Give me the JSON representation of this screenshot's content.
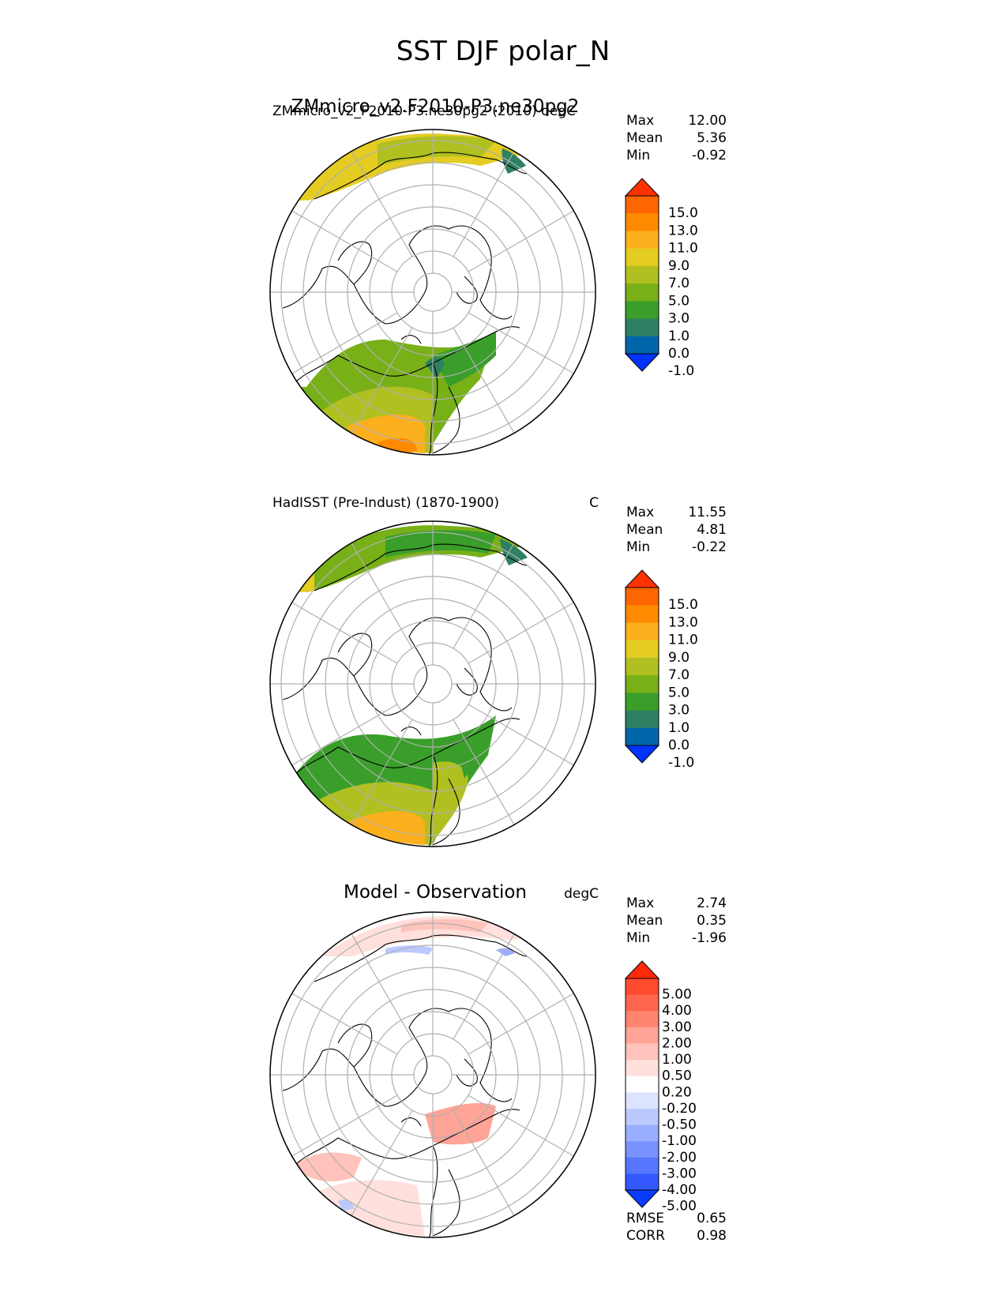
{
  "figure": {
    "title": "SST DJF polar_N"
  },
  "colors": {
    "abs_levels": [
      "#0033ff",
      "#0066aa",
      "#2e8063",
      "#3a9e2a",
      "#78b018",
      "#b0c020",
      "#e4cc22",
      "#fcb01e",
      "#ff8a00",
      "#ff6600",
      "#ff3300"
    ],
    "diff_levels": [
      "#0a3cff",
      "#3458ff",
      "#5676ff",
      "#7892ff",
      "#9aaeff",
      "#bcc9ff",
      "#dde4ff",
      "#ffffff",
      "#ffe0dc",
      "#ffc3bb",
      "#ffa496",
      "#ff8570",
      "#ff664e",
      "#ff4a2e",
      "#ff2a0a"
    ],
    "grid": "#b0b0b0",
    "coast": "#000000"
  },
  "panels": [
    {
      "id": "test",
      "left_title": "ZMmicro_v2_F2010-P3.ne30pg2 (2010) degC",
      "overlay_title": "ZMmicro_v2.F2010-P3.ne30pg2",
      "units": "",
      "stats": [
        {
          "label": "Max",
          "value": "12.00"
        },
        {
          "label": "Mean",
          "value": "5.36"
        },
        {
          "label": "Min",
          "value": "-0.92"
        }
      ],
      "colorbar_ticks": [
        "15.0",
        "13.0",
        "11.0",
        "9.0",
        "7.0",
        "5.0",
        "3.0",
        "1.0",
        "0.0",
        "-1.0"
      ]
    },
    {
      "id": "ref",
      "left_title": "HadISST (Pre-Indust) (1870-1900)",
      "overlay_title": "",
      "units": "C",
      "stats": [
        {
          "label": "Max",
          "value": "11.55"
        },
        {
          "label": "Mean",
          "value": "4.81"
        },
        {
          "label": "Min",
          "value": "-0.22"
        }
      ],
      "colorbar_ticks": [
        "15.0",
        "13.0",
        "11.0",
        "9.0",
        "7.0",
        "5.0",
        "3.0",
        "1.0",
        "0.0",
        "-1.0"
      ]
    },
    {
      "id": "diff",
      "left_title": "Model - Observation",
      "overlay_title": "",
      "units": "degC",
      "stats": [
        {
          "label": "Max",
          "value": "2.74"
        },
        {
          "label": "Mean",
          "value": "0.35"
        },
        {
          "label": "Min",
          "value": "-1.96"
        }
      ],
      "colorbar_ticks": [
        "5.00",
        "4.00",
        "3.00",
        "2.00",
        "1.00",
        "0.50",
        "0.20",
        "-0.20",
        "-0.50",
        "-1.00",
        "-2.00",
        "-3.00",
        "-4.00",
        "-5.00"
      ],
      "metrics": [
        {
          "label": "RMSE",
          "value": "0.65"
        },
        {
          "label": "CORR",
          "value": "0.98"
        }
      ]
    }
  ],
  "chart_data": [
    {
      "type": "heatmap",
      "title": "ZMmicro_v2_F2010-P3.ne30pg2 (2010)",
      "units": "degC",
      "projection": "north-polar-stereographic",
      "levels": [
        -1.0,
        0.0,
        1.0,
        3.0,
        5.0,
        7.0,
        9.0,
        11.0,
        13.0,
        15.0
      ],
      "extend": "both",
      "max": 12.0,
      "mean": 5.36,
      "min": -0.92
    },
    {
      "type": "heatmap",
      "title": "HadISST (Pre-Indust) (1870-1900)",
      "units": "C",
      "projection": "north-polar-stereographic",
      "levels": [
        -1.0,
        0.0,
        1.0,
        3.0,
        5.0,
        7.0,
        9.0,
        11.0,
        13.0,
        15.0
      ],
      "extend": "both",
      "max": 11.55,
      "mean": 4.81,
      "min": -0.22
    },
    {
      "type": "heatmap",
      "title": "Model - Observation",
      "units": "degC",
      "projection": "north-polar-stereographic",
      "levels": [
        -5.0,
        -4.0,
        -3.0,
        -2.0,
        -1.0,
        -0.5,
        -0.2,
        0.2,
        0.5,
        1.0,
        2.0,
        3.0,
        4.0,
        5.0
      ],
      "extend": "both",
      "max": 2.74,
      "mean": 0.35,
      "min": -1.96,
      "rmse": 0.65,
      "corr": 0.98
    }
  ]
}
